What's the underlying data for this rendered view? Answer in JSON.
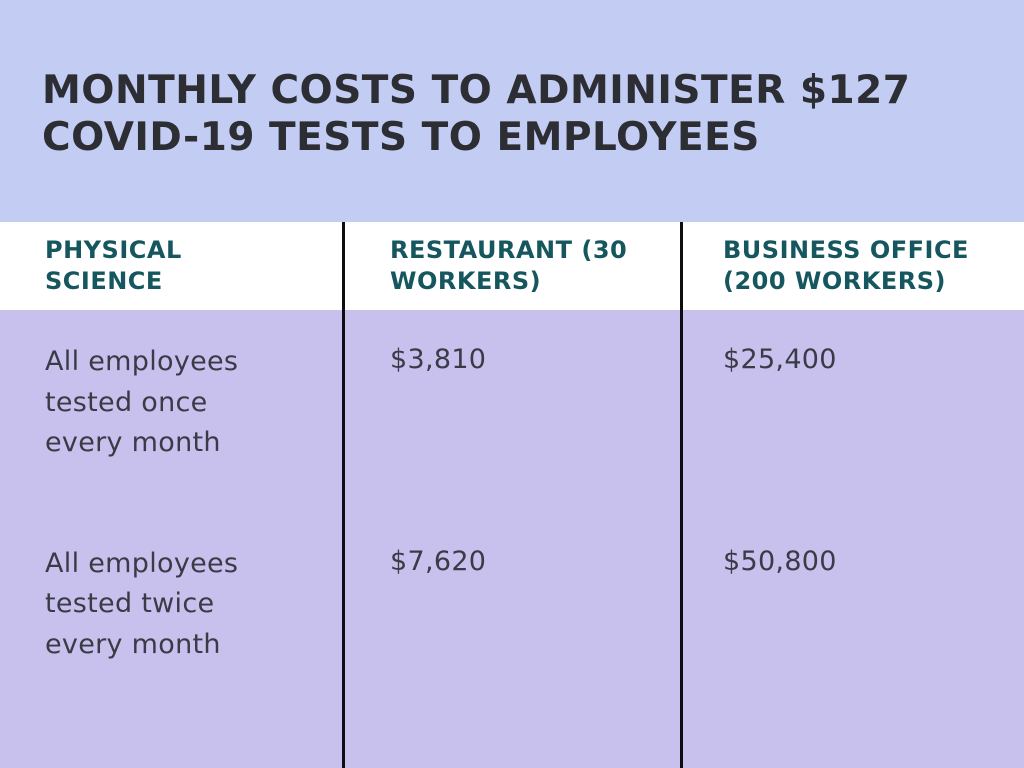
{
  "page": {
    "background_top": "#c3cdf4",
    "background_table_body": "#c8c1ee",
    "header_band_background": "#ffffff",
    "divider_color": "#0d0d12",
    "title_color": "#2c2e33",
    "header_text_color": "#15565f",
    "body_text_color": "#3a3b46"
  },
  "chart_data": {
    "type": "table",
    "title": "MONTHLY COSTS TO ADMINISTER $127 COVID-19 TESTS TO EMPLOYEES",
    "columns": [
      "PHYSICAL SCIENCE",
      "RESTAURANT (30 WORKERS)",
      "BUSINESS OFFICE (200 WORKERS)"
    ],
    "rows": [
      [
        "All employees tested once every month",
        "$3,810",
        "$25,400"
      ],
      [
        "All employees tested twice every month",
        "$7,620",
        "$50,800"
      ]
    ]
  }
}
